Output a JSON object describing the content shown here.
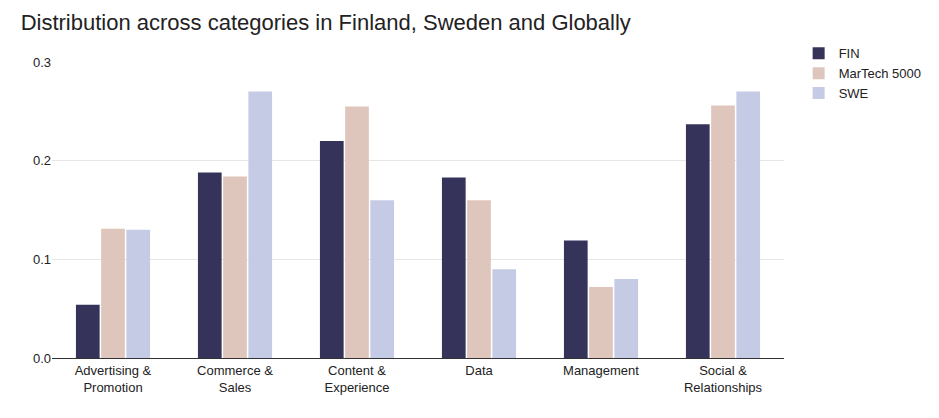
{
  "chart_data": {
    "type": "bar",
    "title": "Distribution across categories in Finland, Sweden and Globally",
    "categories": [
      "Advertising & Promotion",
      "Commerce & Sales",
      "Content & Experience",
      "Data",
      "Management",
      "Social & Relationships"
    ],
    "series": [
      {
        "name": "FIN",
        "color": "#35335a",
        "values": [
          0.054,
          0.188,
          0.22,
          0.183,
          0.119,
          0.237
        ]
      },
      {
        "name": "MarTech 5000",
        "color": "#dfc6bc",
        "values": [
          0.131,
          0.184,
          0.255,
          0.16,
          0.072,
          0.256
        ]
      },
      {
        "name": "SWE",
        "color": "#c5cbe4",
        "values": [
          0.13,
          0.27,
          0.16,
          0.09,
          0.08,
          0.27
        ]
      }
    ],
    "ylim": [
      0,
      0.3
    ],
    "yticks": [
      {
        "value": 0,
        "label": "0.0"
      },
      0.1,
      0.2,
      0.3
    ],
    "grid": true,
    "legend": "right"
  }
}
